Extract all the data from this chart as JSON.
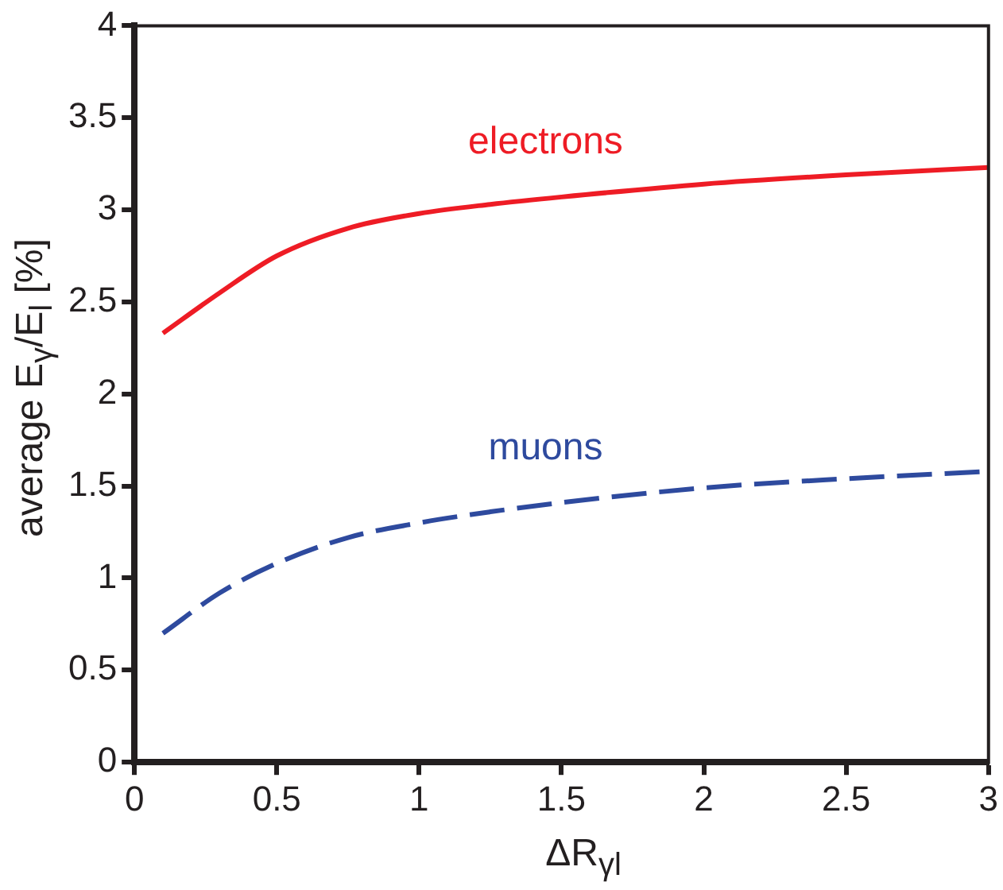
{
  "chart_data": {
    "type": "line",
    "xlabel": "ΔR$_{γl}$",
    "ylabel": "average E$_{γ}$/E$_{l}$ [%]",
    "xlim": [
      0,
      3
    ],
    "xticks": [
      0,
      0.5,
      1,
      1.5,
      2,
      2.5,
      3
    ],
    "ylim": [
      0,
      4
    ],
    "yticks": [
      0,
      0.5,
      1,
      1.5,
      2,
      2.5,
      3,
      3.5,
      4
    ],
    "grid": false,
    "legend": false,
    "marker": "none",
    "series": [
      {
        "name": "electrons",
        "color": "#ee1c25",
        "line_style": "solid",
        "x": [
          0.1,
          0.3,
          0.5,
          0.75,
          1,
          1.25,
          1.5,
          2,
          2.5,
          3
        ],
        "values": [
          2.33,
          2.55,
          2.75,
          2.9,
          2.98,
          3.03,
          3.07,
          3.14,
          3.19,
          3.23
        ]
      },
      {
        "name": "muons",
        "color": "#2e4a9e",
        "line_style": "dashed",
        "x": [
          0.1,
          0.3,
          0.5,
          0.75,
          1,
          1.25,
          1.5,
          2,
          2.5,
          3
        ],
        "values": [
          0.7,
          0.92,
          1.08,
          1.22,
          1.3,
          1.36,
          1.41,
          1.49,
          1.54,
          1.58
        ]
      }
    ]
  }
}
